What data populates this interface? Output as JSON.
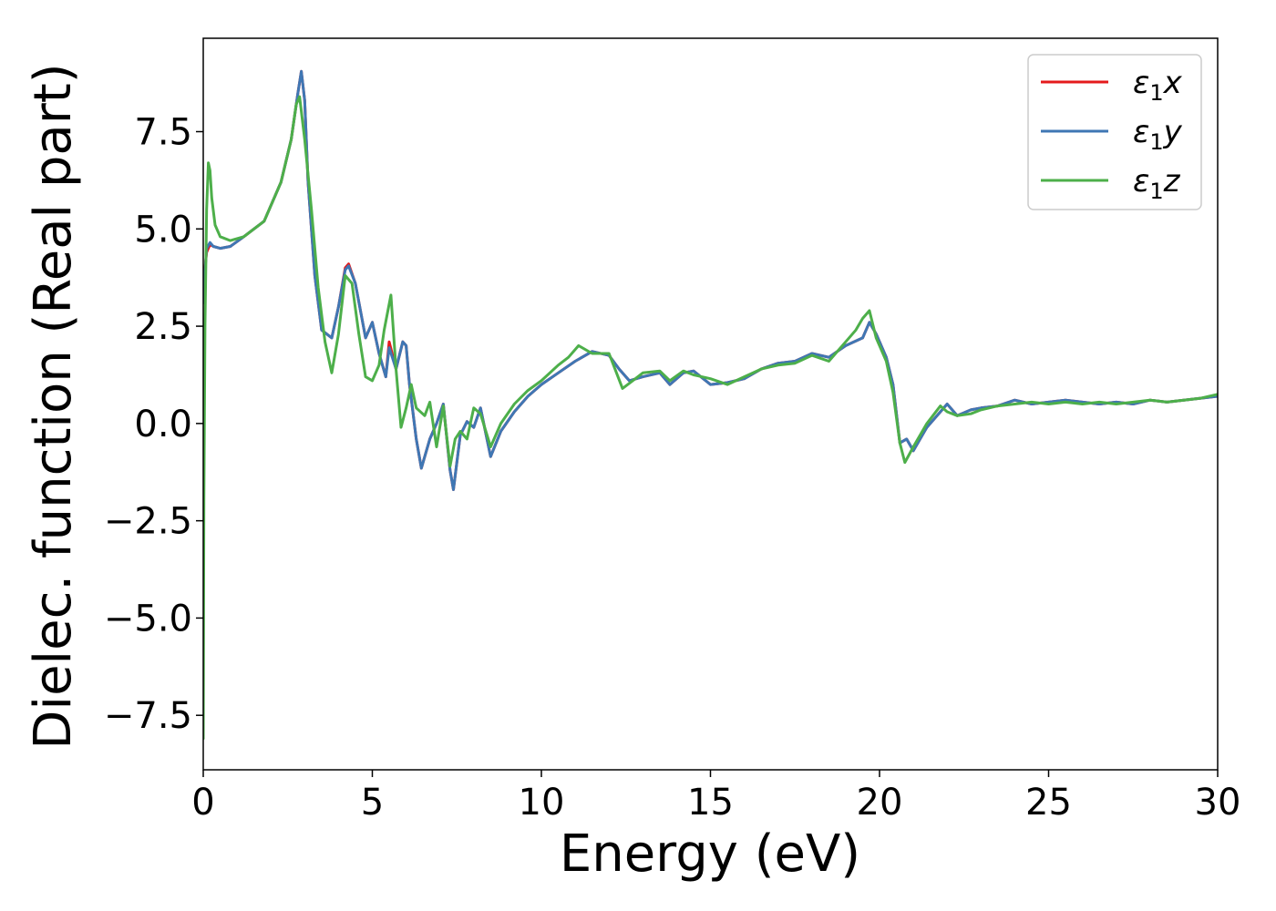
{
  "chart_data": {
    "type": "line",
    "title": "",
    "xlabel": "Energy (eV)",
    "ylabel": "Dielec. function (Real part)",
    "xlim": [
      0,
      30
    ],
    "ylim": [
      -8.9,
      9.9
    ],
    "xticks": [
      0,
      5,
      10,
      15,
      20,
      25,
      30
    ],
    "xtick_labels": [
      "0",
      "5",
      "10",
      "15",
      "20",
      "25",
      "30"
    ],
    "yticks": [
      -7.5,
      -5.0,
      -2.5,
      0.0,
      2.5,
      5.0,
      7.5
    ],
    "ytick_labels": [
      "−7.5",
      "−5.0",
      "−2.5",
      "0.0",
      "2.5",
      "5.0",
      "7.5"
    ],
    "grid": false,
    "legend_position": "top-right",
    "series": [
      {
        "name": "ε₁x",
        "legend_main": "ε",
        "legend_sub": "1",
        "legend_tail": "x",
        "color": "#e41a1c",
        "x": [
          0.0,
          0.05,
          0.1,
          0.2,
          0.3,
          0.5,
          0.8,
          1.2,
          1.8,
          2.3,
          2.6,
          2.8,
          2.9,
          3.0,
          3.1,
          3.3,
          3.5,
          3.8,
          4.0,
          4.2,
          4.3,
          4.5,
          4.8,
          5.0,
          5.2,
          5.4,
          5.5,
          5.7,
          5.9,
          6.0,
          6.1,
          6.3,
          6.45,
          6.7,
          6.9,
          7.1,
          7.3,
          7.4,
          7.6,
          7.8,
          8.0,
          8.2,
          8.5,
          8.8,
          9.2,
          9.6,
          10.0,
          10.5,
          11.0,
          11.5,
          12.0,
          12.3,
          12.6,
          13.0,
          13.5,
          13.8,
          14.2,
          14.5,
          15.0,
          15.5,
          16.0,
          16.5,
          17.0,
          17.5,
          18.0,
          18.5,
          19.0,
          19.5,
          19.7,
          19.9,
          20.2,
          20.4,
          20.6,
          20.8,
          21.0,
          21.4,
          21.8,
          22.0,
          22.3,
          22.7,
          23.0,
          23.5,
          24.0,
          24.5,
          25.0,
          25.5,
          26.0,
          26.5,
          27.0,
          27.5,
          28.0,
          28.5,
          29.0,
          29.5,
          30.0
        ],
        "y": [
          3.6,
          4.0,
          4.4,
          4.6,
          4.55,
          4.5,
          4.55,
          4.8,
          5.2,
          6.2,
          7.3,
          8.5,
          9.05,
          8.3,
          6.2,
          3.8,
          2.4,
          2.2,
          3.0,
          4.0,
          4.1,
          3.6,
          2.2,
          2.6,
          1.8,
          1.2,
          2.1,
          1.4,
          2.1,
          2.0,
          1.0,
          -0.4,
          -1.15,
          -0.4,
          0.0,
          0.5,
          -1.2,
          -1.7,
          -0.3,
          0.05,
          -0.1,
          0.4,
          -0.85,
          -0.2,
          0.3,
          0.7,
          1.0,
          1.3,
          1.6,
          1.85,
          1.75,
          1.4,
          1.1,
          1.2,
          1.3,
          1.0,
          1.3,
          1.35,
          1.0,
          1.05,
          1.15,
          1.4,
          1.55,
          1.6,
          1.8,
          1.7,
          2.0,
          2.2,
          2.6,
          2.3,
          1.7,
          1.0,
          -0.5,
          -0.4,
          -0.7,
          -0.1,
          0.3,
          0.5,
          0.2,
          0.35,
          0.4,
          0.45,
          0.6,
          0.5,
          0.55,
          0.6,
          0.55,
          0.5,
          0.55,
          0.5,
          0.6,
          0.55,
          0.6,
          0.65,
          0.7
        ]
      },
      {
        "name": "ε₁y",
        "legend_main": "ε",
        "legend_sub": "1",
        "legend_tail": "y",
        "color": "#3f77b4",
        "x": [
          0.0,
          0.05,
          0.1,
          0.2,
          0.3,
          0.5,
          0.8,
          1.2,
          1.8,
          2.3,
          2.6,
          2.8,
          2.9,
          3.0,
          3.1,
          3.3,
          3.5,
          3.8,
          4.0,
          4.2,
          4.3,
          4.5,
          4.8,
          5.0,
          5.2,
          5.4,
          5.5,
          5.7,
          5.9,
          6.0,
          6.1,
          6.3,
          6.45,
          6.7,
          6.9,
          7.1,
          7.3,
          7.4,
          7.6,
          7.8,
          8.0,
          8.2,
          8.5,
          8.8,
          9.2,
          9.6,
          10.0,
          10.5,
          11.0,
          11.5,
          12.0,
          12.3,
          12.6,
          13.0,
          13.5,
          13.8,
          14.2,
          14.5,
          15.0,
          15.5,
          16.0,
          16.5,
          17.0,
          17.5,
          18.0,
          18.5,
          19.0,
          19.5,
          19.7,
          19.9,
          20.2,
          20.4,
          20.6,
          20.8,
          21.0,
          21.4,
          21.8,
          22.0,
          22.3,
          22.7,
          23.0,
          23.5,
          24.0,
          24.5,
          25.0,
          25.5,
          26.0,
          26.5,
          27.0,
          27.5,
          28.0,
          28.5,
          29.0,
          29.5,
          30.0
        ],
        "y": [
          3.1,
          3.9,
          4.5,
          4.65,
          4.55,
          4.5,
          4.55,
          4.8,
          5.2,
          6.2,
          7.3,
          8.5,
          9.05,
          8.3,
          6.2,
          3.8,
          2.4,
          2.2,
          3.0,
          3.95,
          4.05,
          3.6,
          2.2,
          2.6,
          1.8,
          1.2,
          1.95,
          1.4,
          2.1,
          2.0,
          1.0,
          -0.4,
          -1.15,
          -0.4,
          0.0,
          0.5,
          -1.2,
          -1.7,
          -0.3,
          0.05,
          -0.1,
          0.4,
          -0.85,
          -0.2,
          0.3,
          0.7,
          1.0,
          1.3,
          1.6,
          1.85,
          1.75,
          1.4,
          1.1,
          1.2,
          1.3,
          1.0,
          1.3,
          1.35,
          1.0,
          1.05,
          1.15,
          1.4,
          1.55,
          1.6,
          1.8,
          1.7,
          2.0,
          2.2,
          2.6,
          2.3,
          1.7,
          1.0,
          -0.5,
          -0.4,
          -0.7,
          -0.1,
          0.3,
          0.5,
          0.2,
          0.35,
          0.4,
          0.45,
          0.6,
          0.5,
          0.55,
          0.6,
          0.55,
          0.5,
          0.55,
          0.5,
          0.6,
          0.55,
          0.6,
          0.65,
          0.7
        ]
      },
      {
        "name": "ε₁z",
        "legend_main": "ε",
        "legend_sub": "1",
        "legend_tail": "z",
        "color": "#4daf4a",
        "x": [
          0.0,
          0.02,
          0.05,
          0.1,
          0.15,
          0.2,
          0.25,
          0.35,
          0.5,
          0.8,
          1.2,
          1.8,
          2.3,
          2.6,
          2.75,
          2.85,
          3.0,
          3.2,
          3.4,
          3.6,
          3.8,
          4.0,
          4.2,
          4.4,
          4.6,
          4.8,
          5.0,
          5.2,
          5.35,
          5.55,
          5.7,
          5.85,
          6.0,
          6.15,
          6.3,
          6.55,
          6.7,
          6.9,
          7.1,
          7.3,
          7.45,
          7.6,
          7.8,
          8.0,
          8.2,
          8.5,
          8.8,
          9.2,
          9.6,
          10.0,
          10.5,
          10.8,
          11.1,
          11.5,
          12.0,
          12.4,
          12.7,
          13.0,
          13.5,
          13.8,
          14.2,
          14.5,
          15.0,
          15.5,
          16.0,
          16.5,
          17.0,
          17.5,
          18.0,
          18.5,
          19.0,
          19.3,
          19.5,
          19.7,
          19.9,
          20.2,
          20.4,
          20.6,
          20.75,
          21.0,
          21.4,
          21.8,
          22.0,
          22.3,
          22.7,
          23.0,
          23.5,
          24.0,
          24.5,
          25.0,
          25.5,
          26.0,
          26.5,
          27.0,
          27.5,
          28.0,
          28.5,
          29.0,
          29.5,
          30.0
        ],
        "y": [
          -8.1,
          -2.0,
          2.5,
          5.5,
          6.7,
          6.5,
          5.8,
          5.1,
          4.8,
          4.7,
          4.8,
          5.2,
          6.2,
          7.3,
          8.2,
          8.4,
          7.3,
          5.5,
          3.5,
          2.1,
          1.3,
          2.3,
          3.8,
          3.6,
          2.3,
          1.2,
          1.1,
          1.5,
          2.4,
          3.3,
          1.4,
          -0.1,
          0.4,
          1.0,
          0.4,
          0.2,
          0.55,
          -0.6,
          0.45,
          -1.1,
          -0.4,
          -0.2,
          -0.4,
          0.4,
          0.25,
          -0.6,
          0.0,
          0.5,
          0.85,
          1.1,
          1.5,
          1.7,
          2.0,
          1.8,
          1.8,
          0.9,
          1.1,
          1.3,
          1.35,
          1.1,
          1.35,
          1.25,
          1.15,
          1.0,
          1.2,
          1.4,
          1.5,
          1.55,
          1.75,
          1.6,
          2.1,
          2.4,
          2.7,
          2.9,
          2.2,
          1.6,
          0.8,
          -0.5,
          -1.0,
          -0.6,
          0.0,
          0.45,
          0.3,
          0.2,
          0.25,
          0.35,
          0.45,
          0.5,
          0.55,
          0.5,
          0.55,
          0.5,
          0.55,
          0.5,
          0.55,
          0.6,
          0.55,
          0.6,
          0.65,
          0.75
        ]
      }
    ]
  }
}
